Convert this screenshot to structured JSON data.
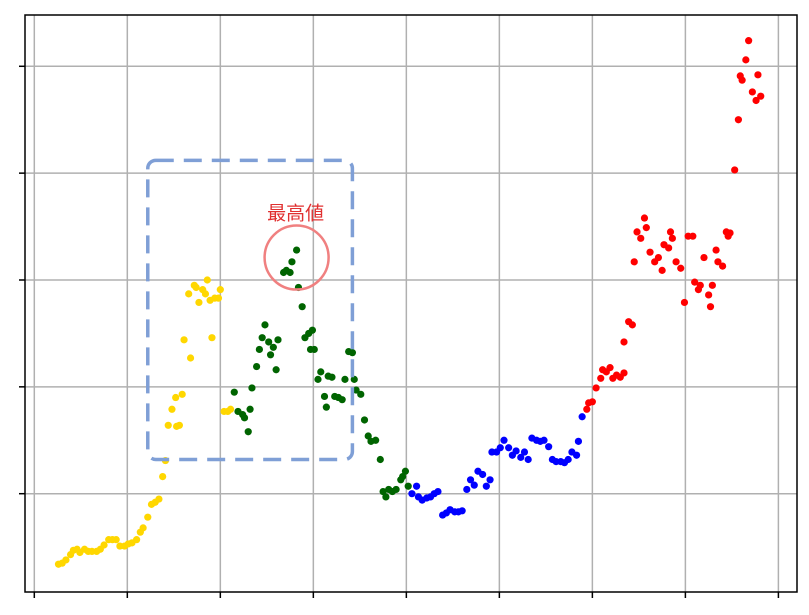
{
  "chart_data": {
    "type": "scatter",
    "title": "",
    "xlabel": "",
    "ylabel": "",
    "xlim": [
      -0.1,
      8.2
    ],
    "ylim": [
      0.08,
      5.48
    ],
    "xticks": [
      0,
      1,
      2,
      3,
      4,
      5,
      6,
      7,
      8
    ],
    "yticks": [
      1,
      2,
      3,
      4,
      5
    ],
    "tick_labels_shown": false,
    "grid": true,
    "grid_color": "#b0b0b0",
    "series": [
      {
        "color": "#ffd700",
        "points": [
          [
            0.26,
            0.34
          ],
          [
            0.3,
            0.35
          ],
          [
            0.34,
            0.38
          ],
          [
            0.39,
            0.43
          ],
          [
            0.42,
            0.47
          ],
          [
            0.46,
            0.48
          ],
          [
            0.49,
            0.45
          ],
          [
            0.54,
            0.48
          ],
          [
            0.58,
            0.46
          ],
          [
            0.62,
            0.46
          ],
          [
            0.67,
            0.46
          ],
          [
            0.71,
            0.48
          ],
          [
            0.75,
            0.52
          ],
          [
            0.8,
            0.57
          ],
          [
            0.84,
            0.57
          ],
          [
            0.88,
            0.57
          ],
          [
            0.92,
            0.51
          ],
          [
            0.97,
            0.51
          ],
          [
            1.01,
            0.53
          ],
          [
            1.05,
            0.54
          ],
          [
            1.1,
            0.57
          ],
          [
            1.14,
            0.64
          ],
          [
            1.17,
            0.68
          ],
          [
            1.22,
            0.78
          ],
          [
            1.26,
            0.9
          ],
          [
            1.3,
            0.92
          ],
          [
            1.34,
            0.95
          ],
          [
            1.38,
            1.16
          ],
          [
            1.41,
            1.31
          ],
          [
            1.44,
            1.64
          ],
          [
            1.48,
            1.79
          ],
          [
            1.52,
            1.9
          ],
          [
            1.53,
            1.63
          ],
          [
            1.56,
            1.64
          ],
          [
            1.59,
            1.93
          ],
          [
            1.61,
            2.44
          ],
          [
            1.66,
            2.87
          ],
          [
            1.68,
            2.27
          ],
          [
            1.72,
            2.95
          ],
          [
            1.74,
            2.93
          ],
          [
            1.77,
            2.79
          ],
          [
            1.81,
            2.91
          ],
          [
            1.84,
            2.87
          ],
          [
            1.86,
            3.0
          ],
          [
            1.89,
            2.81
          ],
          [
            1.91,
            2.46
          ],
          [
            1.94,
            2.83
          ],
          [
            1.98,
            2.83
          ],
          [
            2.0,
            2.91
          ],
          [
            2.04,
            1.77
          ],
          [
            2.08,
            1.77
          ],
          [
            2.11,
            1.79
          ]
        ]
      },
      {
        "color": "#006400",
        "points": [
          [
            2.15,
            1.95
          ],
          [
            2.19,
            1.77
          ],
          [
            2.24,
            1.74
          ],
          [
            2.26,
            1.71
          ],
          [
            2.3,
            1.58
          ],
          [
            2.32,
            1.79
          ],
          [
            2.34,
            1.99
          ],
          [
            2.39,
            2.19
          ],
          [
            2.42,
            2.35
          ],
          [
            2.45,
            2.46
          ],
          [
            2.48,
            2.58
          ],
          [
            2.52,
            2.42
          ],
          [
            2.54,
            2.3
          ],
          [
            2.57,
            2.37
          ],
          [
            2.6,
            2.16
          ],
          [
            2.62,
            2.44
          ],
          [
            2.68,
            3.07
          ],
          [
            2.71,
            3.09
          ],
          [
            2.75,
            3.07
          ],
          [
            2.77,
            3.17
          ],
          [
            2.82,
            3.28
          ],
          [
            2.84,
            2.93
          ],
          [
            2.88,
            2.75
          ],
          [
            2.91,
            2.46
          ],
          [
            2.95,
            2.5
          ],
          [
            2.99,
            2.53
          ],
          [
            2.97,
            2.35
          ],
          [
            3.01,
            2.35
          ],
          [
            3.05,
            2.07
          ],
          [
            3.08,
            2.14
          ],
          [
            3.12,
            1.91
          ],
          [
            3.14,
            1.81
          ],
          [
            3.16,
            2.1
          ],
          [
            3.2,
            2.09
          ],
          [
            3.23,
            1.91
          ],
          [
            3.27,
            1.9
          ],
          [
            3.31,
            1.88
          ],
          [
            3.34,
            2.07
          ],
          [
            3.38,
            2.33
          ],
          [
            3.42,
            2.32
          ],
          [
            3.44,
            2.07
          ],
          [
            3.46,
            1.97
          ],
          [
            3.51,
            1.93
          ],
          [
            3.55,
            1.69
          ],
          [
            3.59,
            1.54
          ],
          [
            3.62,
            1.49
          ],
          [
            3.67,
            1.5
          ],
          [
            3.72,
            1.32
          ],
          [
            3.75,
            1.02
          ],
          [
            3.78,
            0.97
          ],
          [
            3.81,
            1.04
          ],
          [
            3.85,
            1.02
          ],
          [
            3.89,
            1.04
          ],
          [
            3.94,
            1.13
          ],
          [
            3.96,
            1.16
          ],
          [
            3.99,
            1.21
          ],
          [
            4.02,
            1.07
          ]
        ]
      },
      {
        "color": "#0000ff",
        "points": [
          [
            4.06,
            1.0
          ],
          [
            4.11,
            1.07
          ],
          [
            4.13,
            0.97
          ],
          [
            4.17,
            0.94
          ],
          [
            4.22,
            0.96
          ],
          [
            4.26,
            0.97
          ],
          [
            4.3,
            1.0
          ],
          [
            4.34,
            1.02
          ],
          [
            4.39,
            0.8
          ],
          [
            4.43,
            0.82
          ],
          [
            4.47,
            0.85
          ],
          [
            4.52,
            0.83
          ],
          [
            4.56,
            0.83
          ],
          [
            4.6,
            0.84
          ],
          [
            4.65,
            1.04
          ],
          [
            4.69,
            1.13
          ],
          [
            4.73,
            1.08
          ],
          [
            4.77,
            1.21
          ],
          [
            4.82,
            1.18
          ],
          [
            4.86,
            1.07
          ],
          [
            4.9,
            1.13
          ],
          [
            4.92,
            1.39
          ],
          [
            4.97,
            1.39
          ],
          [
            5.01,
            1.43
          ],
          [
            5.05,
            1.5
          ],
          [
            5.1,
            1.43
          ],
          [
            5.14,
            1.36
          ],
          [
            5.18,
            1.4
          ],
          [
            5.23,
            1.34
          ],
          [
            5.27,
            1.39
          ],
          [
            5.31,
            1.32
          ],
          [
            5.35,
            1.52
          ],
          [
            5.4,
            1.5
          ],
          [
            5.44,
            1.49
          ],
          [
            5.48,
            1.5
          ],
          [
            5.53,
            1.44
          ],
          [
            5.57,
            1.32
          ],
          [
            5.61,
            1.3
          ],
          [
            5.66,
            1.3
          ],
          [
            5.7,
            1.29
          ],
          [
            5.74,
            1.32
          ],
          [
            5.78,
            1.39
          ],
          [
            5.83,
            1.36
          ],
          [
            5.85,
            1.49
          ],
          [
            5.89,
            1.72
          ]
        ]
      },
      {
        "color": "#ff0000",
        "points": [
          [
            5.94,
            1.79
          ],
          [
            5.96,
            1.85
          ],
          [
            6.0,
            1.86
          ],
          [
            6.04,
            1.99
          ],
          [
            6.09,
            2.08
          ],
          [
            6.11,
            2.16
          ],
          [
            6.15,
            2.14
          ],
          [
            6.19,
            2.18
          ],
          [
            6.22,
            2.08
          ],
          [
            6.26,
            2.11
          ],
          [
            6.3,
            2.09
          ],
          [
            6.34,
            2.13
          ],
          [
            6.34,
            2.42
          ],
          [
            6.39,
            2.61
          ],
          [
            6.43,
            2.58
          ],
          [
            6.45,
            3.17
          ],
          [
            6.48,
            3.45
          ],
          [
            6.52,
            3.39
          ],
          [
            6.56,
            3.58
          ],
          [
            6.58,
            3.49
          ],
          [
            6.62,
            3.26
          ],
          [
            6.67,
            3.17
          ],
          [
            6.71,
            3.21
          ],
          [
            6.75,
            3.09
          ],
          [
            6.77,
            3.33
          ],
          [
            6.82,
            3.3
          ],
          [
            6.84,
            3.45
          ],
          [
            6.86,
            3.39
          ],
          [
            6.9,
            3.17
          ],
          [
            6.95,
            3.11
          ],
          [
            6.99,
            2.79
          ],
          [
            7.03,
            3.41
          ],
          [
            7.08,
            3.41
          ],
          [
            7.1,
            2.98
          ],
          [
            7.14,
            2.91
          ],
          [
            7.16,
            2.95
          ],
          [
            7.2,
            3.21
          ],
          [
            7.25,
            2.86
          ],
          [
            7.27,
            2.75
          ],
          [
            7.29,
            2.95
          ],
          [
            7.33,
            3.28
          ],
          [
            7.35,
            3.17
          ],
          [
            7.4,
            3.13
          ],
          [
            7.44,
            3.45
          ],
          [
            7.46,
            3.41
          ],
          [
            7.48,
            3.44
          ],
          [
            7.53,
            4.03
          ],
          [
            7.57,
            4.5
          ],
          [
            7.59,
            4.91
          ],
          [
            7.61,
            4.87
          ],
          [
            7.65,
            5.06
          ],
          [
            7.68,
            5.24
          ],
          [
            7.72,
            4.76
          ],
          [
            7.76,
            4.68
          ],
          [
            7.78,
            4.92
          ],
          [
            7.81,
            4.72
          ]
        ]
      }
    ],
    "annotations": {
      "highlight_box": {
        "x_range": [
          1.22,
          3.42
        ],
        "y_range": [
          1.32,
          4.12
        ],
        "color": "#7f9fd6",
        "style": "dashed"
      },
      "peak_circle": {
        "center": [
          2.82,
          3.21
        ],
        "color": "#f08080"
      },
      "peak_label": {
        "text": "最高値",
        "color": "#e03030"
      }
    }
  }
}
